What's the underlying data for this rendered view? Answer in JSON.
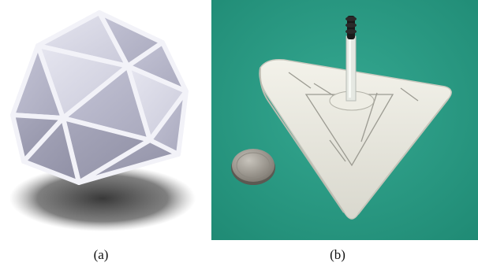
{
  "figure": {
    "panels": [
      {
        "id": "a",
        "caption": "(a)",
        "subject": "icosahedron-render"
      },
      {
        "id": "b",
        "caption": "(b)",
        "subject": "triangular-soft-actuator-photo"
      }
    ]
  },
  "colors": {
    "background": "#ffffff",
    "render_face_light": "#dcdce8",
    "render_face_mid": "#b9b9cc",
    "render_face_dark": "#9a9aae",
    "render_edge": "#eeeef6",
    "shadow": "#444444",
    "photo_backdrop": "#2e9c86",
    "silicone": "#e9e8df",
    "coin": "#a7a29a",
    "tube_tip": "#1a1a1a"
  }
}
